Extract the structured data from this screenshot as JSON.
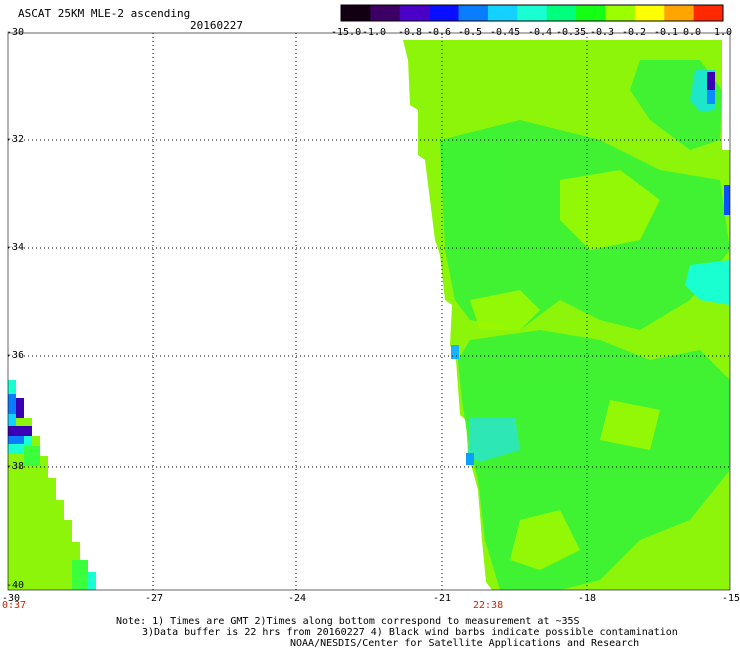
{
  "title": "ASCAT 25KM MLE-2 ascending",
  "date": "20160227",
  "colorbar": {
    "labels": [
      "-15.0",
      "-1.0",
      "-0.8",
      "-0.6",
      "-0.5",
      "-0.45",
      "-0.4",
      "-0.35",
      "-0.3",
      "-0.2",
      "-0.1",
      "0.0",
      "1.0"
    ],
    "colors": [
      "#120012",
      "#3c0064",
      "#4b00c8",
      "#0a10ff",
      "#0a7dff",
      "#14d2ff",
      "#19ffd2",
      "#00ff7d",
      "#14ff14",
      "#9bff00",
      "#ffff00",
      "#ffa500",
      "#ff2800"
    ]
  },
  "axes": {
    "lat_labels": [
      "-30",
      "-32",
      "-34",
      "-36",
      "-38",
      "-40"
    ],
    "lon_labels": [
      "-30",
      "-27",
      "-24",
      "-21",
      "-18",
      "-15"
    ],
    "grid": true
  },
  "pass_times": [
    "0:37",
    "22:38"
  ],
  "notes": [
    "Note: 1) Times are GMT 2)Times along bottom correspond to measurement at ~35S",
    "3)Data buffer is 22 hrs from 20160227 4) Black wind barbs indicate possible contamination",
    "NOAA/NESDIS/Center for Satellite Applications and Research"
  ],
  "swaths": {
    "east": {
      "dominant_color": "#9bff00",
      "secondary_color": "#3cff3c",
      "lon_range": [
        -21.5,
        -15
      ],
      "lat_range": [
        -30.5,
        -40
      ]
    },
    "west": {
      "dominant_color": "#9bff00",
      "lon_range": [
        -30,
        -28.6
      ],
      "lat_range": [
        -36.5,
        -40
      ]
    }
  }
}
